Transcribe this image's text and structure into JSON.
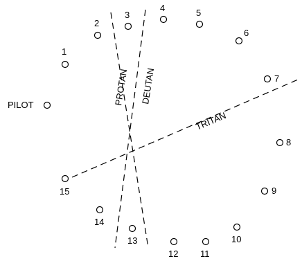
{
  "pilot": {
    "label": "PILOT"
  },
  "caps": [
    {
      "label": "1"
    },
    {
      "label": "2"
    },
    {
      "label": "3"
    },
    {
      "label": "4"
    },
    {
      "label": "5"
    },
    {
      "label": "6"
    },
    {
      "label": "7"
    },
    {
      "label": "8"
    },
    {
      "label": "9"
    },
    {
      "label": "10"
    },
    {
      "label": "11"
    },
    {
      "label": "12"
    },
    {
      "label": "13"
    },
    {
      "label": "14"
    },
    {
      "label": "15"
    }
  ],
  "axes": {
    "protan": {
      "label": "PROTAN"
    },
    "deutan": {
      "label": "DEUTAN"
    },
    "tritan": {
      "label": "TRITAN"
    }
  }
}
